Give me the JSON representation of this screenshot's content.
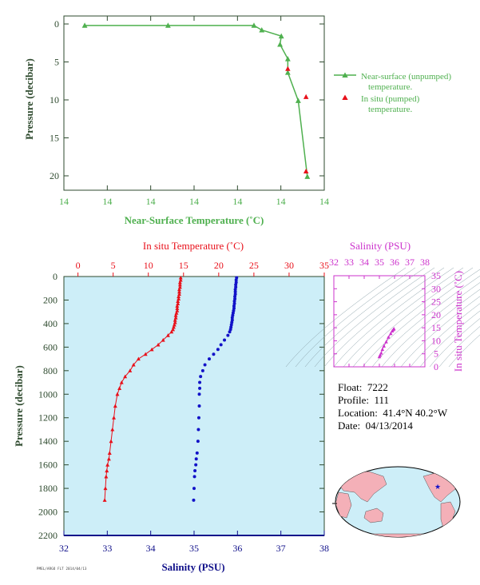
{
  "colors": {
    "green": "#4fb04f",
    "red": "#e8101a",
    "blue": "#1212c8",
    "magenta": "#cc33cc",
    "axis_green": "#2e4a2e",
    "plot_bg": "#cdeef8",
    "navy": "#10108a"
  },
  "info": {
    "float_label": "Float:",
    "float": "7222",
    "profile_label": "Profile:",
    "profile": "111",
    "location_label": "Location:",
    "location": "41.4°N  40.2°W",
    "date_label": "Date:",
    "date": "04/13/2014"
  },
  "tiny_text": "PMEL/ARGO FLT 2014/04/13",
  "chart_data": [
    {
      "type": "line",
      "title": "",
      "xlabel": "Near-Surface Temperature (˚C)",
      "ylabel": "Pressure (decibar)",
      "x_tick_labels": [
        "14",
        "14",
        "14",
        "14",
        "14",
        "14",
        "14"
      ],
      "y_tick_labels": [
        "0",
        "5",
        "10",
        "15",
        "20"
      ],
      "ylim": [
        0,
        22
      ],
      "y_reversed": true,
      "grid": false,
      "legend_position": "right",
      "series": [
        {
          "name": "Near-surface (unpumped) temperature.",
          "marker": "triangle-line",
          "points": [
            [
              0.08,
              0.2
            ],
            [
              0.4,
              0.2
            ],
            [
              0.73,
              0.2
            ],
            [
              0.76,
              0.8
            ],
            [
              0.835,
              1.6
            ],
            [
              0.83,
              2.7
            ],
            [
              0.86,
              4.6
            ],
            [
              0.86,
              6.4
            ],
            [
              0.9,
              10.1
            ],
            [
              0.935,
              20.1
            ]
          ]
        },
        {
          "name": "In situ (pumped) temperature.",
          "marker": "triangle",
          "points": [
            [
              0.86,
              5.9
            ],
            [
              0.93,
              9.6
            ],
            [
              0.93,
              19.4
            ]
          ]
        }
      ]
    },
    {
      "type": "scatter",
      "title": "",
      "ylabel": "Pressure (decibar)",
      "y_tick_labels": [
        "0",
        "200",
        "400",
        "600",
        "800",
        "1000",
        "1200",
        "1400",
        "1600",
        "1800",
        "2000",
        "2200"
      ],
      "ylim": [
        0,
        2200
      ],
      "y_reversed": true,
      "grid": false,
      "axes": [
        {
          "label": "In situ Temperature (˚C)",
          "position": "top",
          "range": [
            -2,
            35
          ],
          "ticks": [
            0,
            5,
            10,
            15,
            20,
            25,
            30,
            35
          ]
        },
        {
          "label": "Salinity (PSU)",
          "position": "bottom",
          "range": [
            32,
            38
          ],
          "ticks": [
            32,
            33,
            34,
            35,
            36,
            37,
            38
          ]
        }
      ],
      "series": [
        {
          "name": "",
          "axis": "top",
          "marker": "triangle",
          "temperature": [
            14.6,
            14.6,
            14.5,
            14.5,
            14.5,
            14.4,
            14.4,
            14.4,
            14.3,
            14.3,
            14.2,
            14.2,
            14.1,
            14.1,
            14.1,
            14.0,
            13.9,
            13.9,
            13.8,
            13.8,
            13.7,
            13.6,
            13.5,
            13.3,
            12.8,
            12.1,
            11.4,
            10.5,
            9.6,
            8.6,
            7.9,
            7.4,
            6.7,
            6.2,
            5.9,
            5.6,
            5.3,
            5.1,
            4.9,
            4.7,
            4.5,
            4.4,
            4.2,
            4.1,
            4.0,
            3.9,
            3.8
          ],
          "pressure": [
            10,
            30,
            50,
            70,
            90,
            110,
            130,
            150,
            170,
            190,
            210,
            230,
            250,
            270,
            290,
            310,
            330,
            350,
            370,
            390,
            410,
            430,
            450,
            470,
            500,
            540,
            580,
            620,
            660,
            700,
            750,
            800,
            850,
            900,
            950,
            1000,
            1100,
            1200,
            1300,
            1400,
            1500,
            1550,
            1600,
            1650,
            1700,
            1800,
            1900
          ]
        },
        {
          "name": "",
          "axis": "bottom",
          "marker": "dot",
          "salinity": [
            35.98,
            35.97,
            35.97,
            35.96,
            35.96,
            35.95,
            35.95,
            35.95,
            35.94,
            35.94,
            35.93,
            35.93,
            35.92,
            35.92,
            35.91,
            35.9,
            35.89,
            35.88,
            35.88,
            35.87,
            35.86,
            35.85,
            35.84,
            35.82,
            35.78,
            35.7,
            35.62,
            35.55,
            35.45,
            35.35,
            35.25,
            35.2,
            35.15,
            35.13,
            35.13,
            35.12,
            35.12,
            35.11,
            35.1,
            35.09,
            35.07,
            35.05,
            35.04,
            35.02,
            35.01,
            35.0,
            34.99
          ],
          "pressure": [
            10,
            30,
            50,
            70,
            90,
            110,
            130,
            150,
            170,
            190,
            210,
            230,
            250,
            270,
            290,
            310,
            330,
            350,
            370,
            390,
            410,
            430,
            450,
            470,
            500,
            540,
            580,
            620,
            660,
            700,
            750,
            800,
            850,
            900,
            950,
            1000,
            1100,
            1200,
            1300,
            1400,
            1500,
            1550,
            1600,
            1650,
            1700,
            1800,
            1900
          ]
        }
      ]
    },
    {
      "type": "scatter",
      "title": "",
      "xlabel": "Salinity (PSU)",
      "ylabel": "In situ Temperature (˚C)",
      "xlim": [
        32,
        38
      ],
      "ylim": [
        0,
        35
      ],
      "x_ticks": [
        32,
        33,
        34,
        35,
        36,
        37,
        38
      ],
      "y_ticks": [
        0,
        5,
        10,
        15,
        20,
        25,
        30,
        35
      ],
      "series": [
        {
          "name": "",
          "marker": "triangle",
          "salinity": [
            35.0,
            35.05,
            35.12,
            35.2,
            35.3,
            35.45,
            35.6,
            35.75,
            35.85,
            35.92,
            35.96
          ],
          "temperature": [
            3.9,
            4.5,
            5.3,
            6.7,
            8.0,
            9.6,
            11.4,
            12.8,
            13.8,
            14.3,
            14.6
          ]
        }
      ]
    }
  ]
}
